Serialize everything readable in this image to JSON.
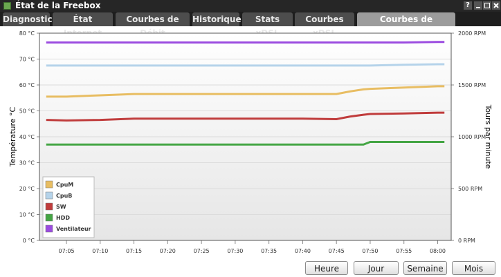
{
  "window_title": "État de la Freebox",
  "help_icon": "?",
  "tabs": [
    {
      "label": "Diagnostic",
      "active": false
    },
    {
      "label": "État Internet",
      "active": false
    },
    {
      "label": "Courbes de Débit",
      "active": false
    },
    {
      "label": "Historique",
      "active": false
    },
    {
      "label": "Stats xDSL",
      "active": false
    },
    {
      "label": "Courbes xDSL",
      "active": false
    },
    {
      "label": "Courbes de température",
      "active": true
    }
  ],
  "buttons": [
    "Heure",
    "Jour",
    "Semaine",
    "Mois"
  ],
  "chart_data": {
    "type": "line",
    "y_label": "Température °C",
    "y2_label": "Tours par minute",
    "x": [
      "07:02",
      "07:05",
      "07:10",
      "07:15",
      "07:20",
      "07:25",
      "07:30",
      "07:35",
      "07:40",
      "07:45",
      "07:47",
      "07:49",
      "07:50",
      "07:55",
      "08:00",
      "08:01"
    ],
    "xlim": [
      "07:01",
      "08:02"
    ],
    "xticks": [
      "07:05",
      "07:10",
      "07:15",
      "07:20",
      "07:25",
      "07:30",
      "07:35",
      "07:40",
      "07:45",
      "07:50",
      "07:55",
      "08:00"
    ],
    "ylim": [
      0,
      80
    ],
    "yticks": [
      {
        "value": 0,
        "label": "0 °C"
      },
      {
        "value": 10,
        "label": "10 °C"
      },
      {
        "value": 20,
        "label": "20 °C"
      },
      {
        "value": 30,
        "label": "30 °C"
      },
      {
        "value": 40,
        "label": "40 °C"
      },
      {
        "value": 50,
        "label": "50 °C"
      },
      {
        "value": 60,
        "label": "60 °C"
      },
      {
        "value": 70,
        "label": "70 °C"
      },
      {
        "value": 80,
        "label": "80 °C"
      }
    ],
    "y2lim": [
      0,
      2000
    ],
    "y2ticks": [
      {
        "value": 0,
        "label": "0 RPM"
      },
      {
        "value": 500,
        "label": "500 RPM"
      },
      {
        "value": 1000,
        "label": "1000 RPM"
      },
      {
        "value": 1500,
        "label": "1500 RPM"
      },
      {
        "value": 2000,
        "label": "2000 RPM"
      }
    ],
    "grid": true,
    "legend": "bottom-left",
    "series": [
      {
        "name": "CpuM",
        "color": "#e8bd62",
        "values": [
          55.5,
          55.5,
          56,
          56.5,
          56.5,
          56.5,
          56.5,
          56.5,
          56.5,
          56.5,
          57.5,
          58.3,
          58.5,
          59,
          59.5,
          59.5
        ]
      },
      {
        "name": "CpuB",
        "color": "#b5d3ea",
        "values": [
          67.5,
          67.5,
          67.5,
          67.5,
          67.5,
          67.5,
          67.5,
          67.5,
          67.5,
          67.5,
          67.5,
          67.5,
          67.5,
          67.8,
          68,
          68
        ]
      },
      {
        "name": "SW",
        "color": "#c03c3c",
        "values": [
          46.5,
          46.3,
          46.5,
          47,
          47,
          47,
          47,
          47,
          47,
          46.8,
          47.8,
          48.5,
          48.8,
          49,
          49.3,
          49.3
        ]
      },
      {
        "name": "HDD",
        "color": "#44a544",
        "values": [
          37,
          37,
          37,
          37,
          37,
          37,
          37,
          37,
          37,
          37,
          37,
          37,
          38,
          38,
          38,
          38
        ]
      },
      {
        "name": "Ventilateur",
        "color": "#9b4be0",
        "axis": "y2",
        "values": [
          1910,
          1910,
          1910,
          1910,
          1910,
          1910,
          1910,
          1910,
          1910,
          1910,
          1910,
          1910,
          1910,
          1910,
          1915,
          1915
        ]
      }
    ]
  }
}
